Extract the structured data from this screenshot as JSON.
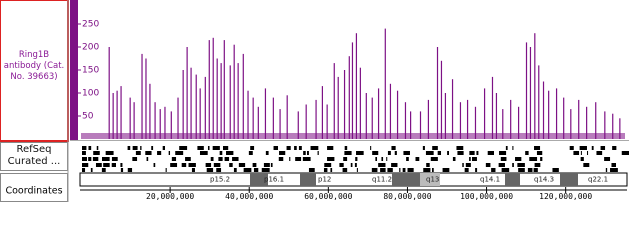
{
  "chart_data": {
    "type": "bar",
    "track_label": "Ring1B antibody (Cat. No. 39663)",
    "refseq_label": "RefSeq Curated ...",
    "coordinates_label": "Coordinates",
    "color": "#7d1185",
    "x": [
      4600000,
      5600000,
      6600000,
      7600000,
      9900000,
      10900000,
      12900000,
      13900000,
      14900000,
      16200000,
      17500000,
      18700000,
      20300000,
      22000000,
      23300000,
      24300000,
      25300000,
      26600000,
      27600000,
      28900000,
      29900000,
      30900000,
      31900000,
      32900000,
      33700000,
      35200000,
      36200000,
      37200000,
      38500000,
      39700000,
      41000000,
      42300000,
      44100000,
      46100000,
      47800000,
      49600000,
      52400000,
      54400000,
      56900000,
      58500000,
      59700000,
      61500000,
      62500000,
      64100000,
      65300000,
      66100000,
      67100000,
      68100000,
      69600000,
      71100000,
      72700000,
      74400000,
      75700000,
      77500000,
      79500000,
      80800000,
      83300000,
      85300000,
      87600000,
      88600000,
      89600000,
      91400000,
      93400000,
      95200000,
      97200000,
      99500000,
      101500000,
      102500000,
      104100000,
      106100000,
      108100000,
      110100000,
      111100000,
      112200000,
      113200000,
      114400000,
      115700000,
      117700000,
      119500000,
      121300000,
      123300000,
      125300000,
      127600000,
      129900000,
      131900000,
      133700000
    ],
    "values": [
      200,
      100,
      105,
      115,
      90,
      80,
      185,
      175,
      120,
      80,
      65,
      70,
      60,
      90,
      150,
      200,
      155,
      140,
      110,
      135,
      215,
      220,
      175,
      165,
      215,
      160,
      205,
      165,
      185,
      105,
      90,
      70,
      110,
      90,
      65,
      95,
      60,
      75,
      85,
      115,
      75,
      165,
      135,
      150,
      180,
      210,
      230,
      155,
      100,
      90,
      110,
      240,
      120,
      105,
      80,
      60,
      60,
      85,
      200,
      170,
      100,
      130,
      80,
      85,
      70,
      110,
      135,
      100,
      65,
      85,
      70,
      210,
      200,
      230,
      160,
      125,
      105,
      110,
      90,
      65,
      85,
      70,
      80,
      60,
      55,
      45
    ],
    "xlim": [
      0,
      135000000
    ],
    "xticks": [
      {
        "value": 20000000,
        "label": "20,000,000"
      },
      {
        "value": 40000000,
        "label": "40,000,000"
      },
      {
        "value": 60000000,
        "label": "60,000,000"
      },
      {
        "value": 80000000,
        "label": "80,000,000"
      },
      {
        "value": 100000000,
        "label": "100,000,000"
      },
      {
        "value": 120000000,
        "label": "120,000,000"
      }
    ],
    "ylim": [
      0,
      300
    ],
    "yticks": [
      50,
      100,
      150,
      200,
      250
    ],
    "bands": [
      "p15.2",
      "p16.1",
      "p12",
      "q11.2",
      "q13",
      "q14.1",
      "q14.3",
      "q22.1"
    ]
  }
}
